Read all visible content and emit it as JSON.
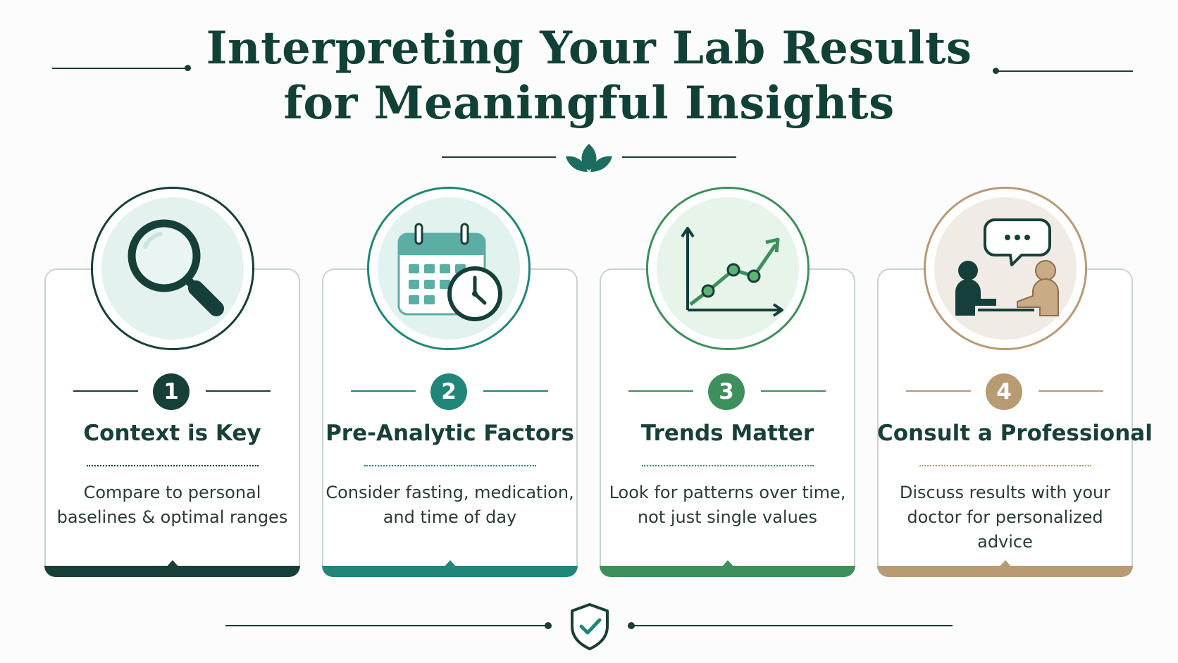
{
  "header": {
    "title_line1": "Interpreting Your Lab Results",
    "title_line2": "for Meaningful Insights"
  },
  "icons": {
    "header_ornament": "leaf-sprig-icon",
    "footer_ornament": "shield-check-icon"
  },
  "colors": {
    "dark_green": "#173f39",
    "teal": "#21857a",
    "green": "#3d8f5b",
    "tan": "#b89a73",
    "text": "#17403a"
  },
  "steps": [
    {
      "number": "1",
      "title": "Context is Key",
      "desc_line1": "Compare to personal",
      "desc_line2": "baselines & optimal ranges",
      "icon": "magnifying-glass-icon",
      "color": "#173f39"
    },
    {
      "number": "2",
      "title": "Pre-Analytic Factors",
      "desc_line1": "Consider fasting, medication,",
      "desc_line2": "and time of day",
      "icon": "calendar-clock-icon",
      "color": "#21857a"
    },
    {
      "number": "3",
      "title": "Trends Matter",
      "desc_line1": "Look for patterns over time,",
      "desc_line2": "not just single values",
      "icon": "trend-chart-icon",
      "color": "#3d8f5b"
    },
    {
      "number": "4",
      "title": "Consult a Professional",
      "desc_line1": "Discuss results with your",
      "desc_line2": "doctor for personalized advice",
      "icon": "consultation-icon",
      "color": "#b89a73"
    }
  ]
}
